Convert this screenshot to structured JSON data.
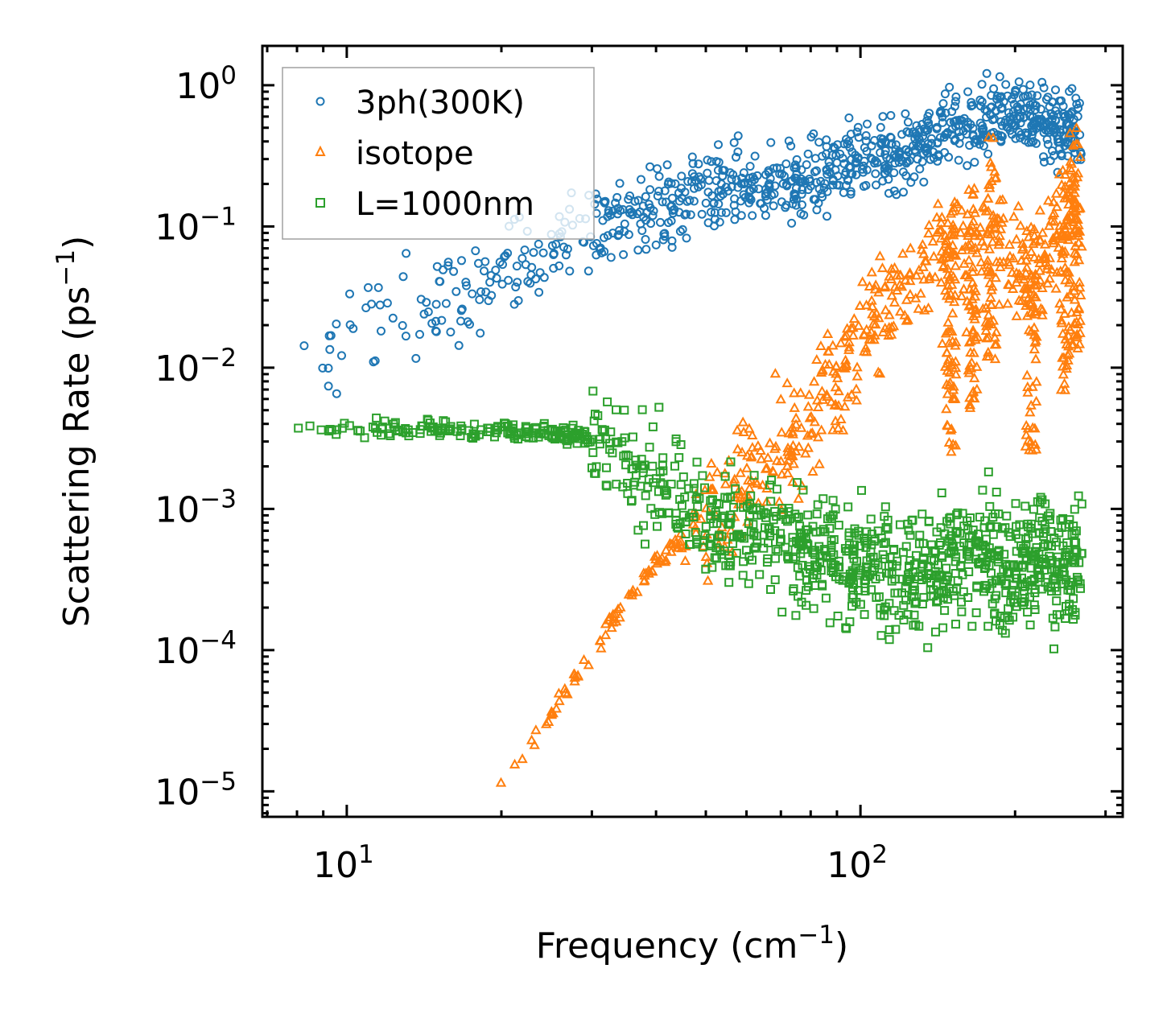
{
  "chart_data": {
    "type": "scatter",
    "title": "",
    "xlabel": "Frequency (cm",
    "xlabel_sup": "−1",
    "xlabel_suffix": ")",
    "ylabel": "Scattering Rate (ps",
    "ylabel_sup": "−1",
    "ylabel_suffix": ")",
    "xscale": "log",
    "yscale": "log",
    "xlim": [
      6.85,
      324
    ],
    "ylim": [
      6.6e-06,
      1.9
    ],
    "grid": false,
    "legend_placement": "top-left",
    "x_ticks": [
      {
        "value": 10,
        "base": "10",
        "exp": "1"
      },
      {
        "value": 100,
        "base": "10",
        "exp": "2"
      }
    ],
    "y_ticks": [
      {
        "value": 1,
        "base": "10",
        "exp": "0"
      },
      {
        "value": 0.1,
        "base": "10",
        "exp": "−1"
      },
      {
        "value": 0.01,
        "base": "10",
        "exp": "−2"
      },
      {
        "value": 0.001,
        "base": "10",
        "exp": "−3"
      },
      {
        "value": 0.0001,
        "base": "10",
        "exp": "−4"
      },
      {
        "value": 1e-05,
        "base": "10",
        "exp": "−5"
      }
    ],
    "series": [
      {
        "name": "3ph(300K)",
        "marker": "circle",
        "color": "#1f77b4",
        "description": "Rises from ~1e-2 at 8 cm-1 to ~0.1 at 30 cm-1, ~0.2 at 55, ~0.3 at 100, ~0.5-1.0 at 160, clusters ~0.7 at 190-230, 0.2-0.7 at 250-270",
        "trend": [
          [
            8,
            0.011
          ],
          [
            12,
            0.022
          ],
          [
            20,
            0.045
          ],
          [
            30,
            0.09
          ],
          [
            40,
            0.13
          ],
          [
            55,
            0.2
          ],
          [
            70,
            0.18
          ],
          [
            100,
            0.3
          ],
          [
            130,
            0.35
          ],
          [
            155,
            0.6
          ],
          [
            170,
            0.55
          ],
          [
            190,
            0.7
          ],
          [
            210,
            0.65
          ],
          [
            250,
            0.5
          ],
          [
            265,
            0.45
          ]
        ],
        "spread_decades": 0.22,
        "x_range": [
          8,
          270
        ],
        "samples": 900
      },
      {
        "name": "isotope",
        "marker": "triangle",
        "color": "#ff7f0e",
        "description": "Power law from 1e-5 at 19 cm-1 to ~4e-4 at 40 cm-1; ~1e-3 at 55, ~3e-3 at 75, ~1e-2 at 90, ~0.03 at 110, spikes up to ~0.1 at 140, ~0.2 at 165, 0.4 at 180, 0.5 at 255",
        "trend": [
          [
            19,
            1e-05
          ],
          [
            25,
            3.5e-05
          ],
          [
            30,
            0.0001
          ],
          [
            40,
            0.0004
          ],
          [
            50,
            0.0009
          ],
          [
            60,
            0.0016
          ],
          [
            75,
            0.003
          ],
          [
            90,
            0.008
          ],
          [
            110,
            0.025
          ],
          [
            140,
            0.06
          ],
          [
            160,
            0.08
          ],
          [
            180,
            0.1
          ],
          [
            215,
            0.05
          ],
          [
            255,
            0.1
          ],
          [
            268,
            0.12
          ]
        ],
        "spikes": [
          [
            150,
            0.1
          ],
          [
            165,
            0.2
          ],
          [
            180,
            0.45
          ],
          [
            215,
            0.1
          ],
          [
            250,
            0.25
          ],
          [
            262,
            0.5
          ]
        ],
        "spread_decades": 0.35,
        "x_range": [
          19,
          270
        ],
        "samples": 900
      },
      {
        "name": "L=1000nm",
        "marker": "square",
        "color": "#2ca02c",
        "description": "Flat ~3.5e-3 from 8 to 30 cm-1, then decreasing and spreading: ~1e-3 at 50, 5e-4 to 1e-3 at 60-180 with spread down to 4e-5, clusters at 190, 215, 255 spanning 3e-5 to 3e-3",
        "trend": [
          [
            8,
            0.0037
          ],
          [
            15,
            0.0037
          ],
          [
            25,
            0.0035
          ],
          [
            32,
            0.003
          ],
          [
            40,
            0.0015
          ],
          [
            50,
            0.0008
          ],
          [
            70,
            0.0006
          ],
          [
            100,
            0.0004
          ],
          [
            140,
            0.0004
          ],
          [
            175,
            0.0005
          ],
          [
            190,
            0.0003
          ],
          [
            215,
            0.0005
          ],
          [
            255,
            0.0004
          ],
          [
            268,
            0.0005
          ]
        ],
        "spread_decades": 0.35,
        "x_range": [
          8,
          270
        ],
        "samples": 1100
      }
    ]
  },
  "legend": {
    "items": [
      {
        "label": "3ph(300K)",
        "color": "#1f77b4",
        "marker": "circle"
      },
      {
        "label": "isotope",
        "color": "#ff7f0e",
        "marker": "triangle"
      },
      {
        "label": "L=1000nm",
        "color": "#2ca02c",
        "marker": "square"
      }
    ]
  }
}
